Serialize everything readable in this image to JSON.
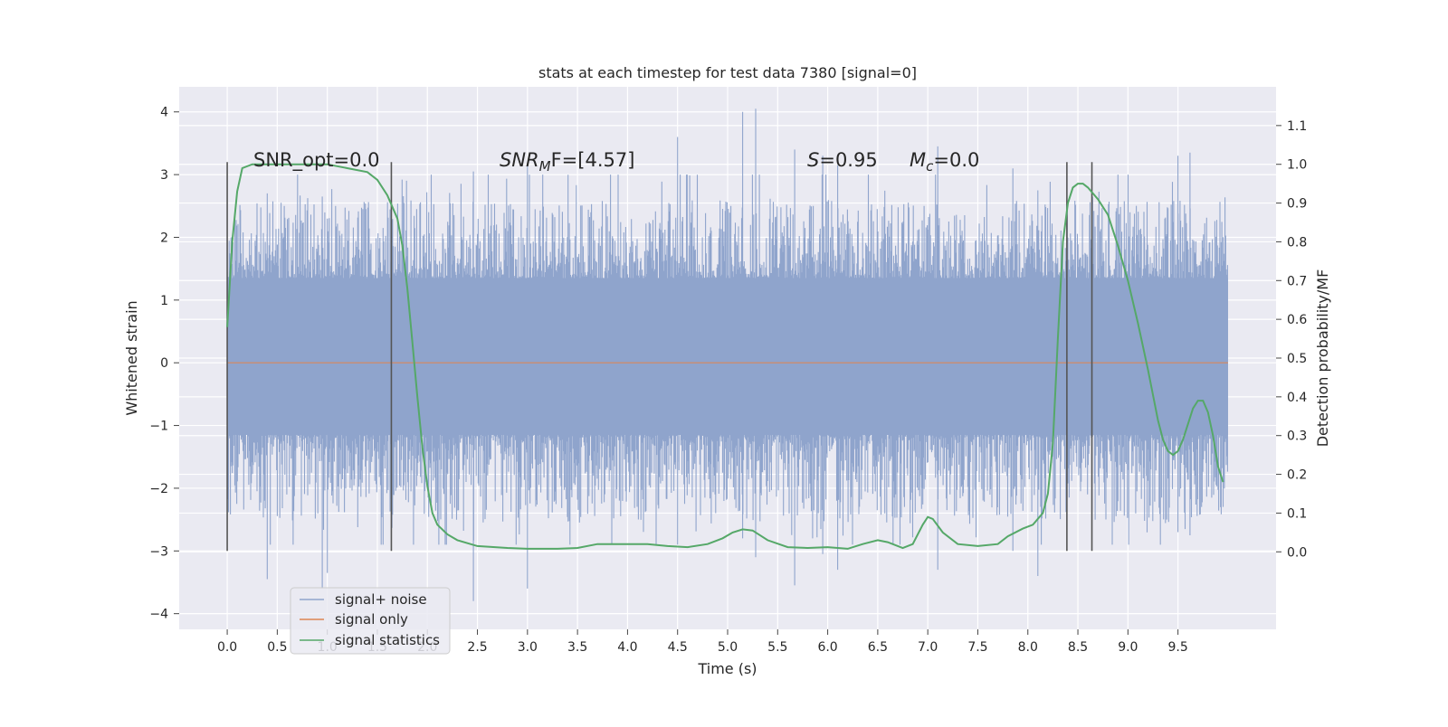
{
  "chart_data": {
    "type": "line",
    "title": "stats at each timestep for test data 7380 [signal=0]",
    "xlabel": "Time (s)",
    "ylabel_left": "Whitened strain",
    "ylabel_right": "Detection probability/MF",
    "xlim": [
      -0.48,
      10.48
    ],
    "ylim_left": [
      -4.25,
      4.4
    ],
    "ylim_right": [
      -0.2,
      1.2
    ],
    "x_ticks": [
      0.0,
      0.5,
      1.0,
      1.5,
      2.0,
      2.5,
      3.0,
      3.5,
      4.0,
      4.5,
      5.0,
      5.5,
      6.0,
      6.5,
      7.0,
      7.5,
      8.0,
      8.5,
      9.0,
      9.5
    ],
    "x_tick_labels": [
      "0.0",
      "0.5",
      "1.0",
      "1.5",
      "2.0",
      "2.5",
      "3.0",
      "3.5",
      "4.0",
      "4.5",
      "5.0",
      "5.5",
      "6.0",
      "6.5",
      "7.0",
      "7.5",
      "8.0",
      "8.5",
      "9.0",
      "9.5"
    ],
    "y_left_ticks": [
      -4,
      -3,
      -2,
      -1,
      0,
      1,
      2,
      3,
      4
    ],
    "y_left_tick_labels": [
      "−4",
      "−3",
      "−2",
      "−1",
      "0",
      "1",
      "2",
      "3",
      "4"
    ],
    "y_right_ticks": [
      0.0,
      0.1,
      0.2,
      0.3,
      0.4,
      0.5,
      0.6,
      0.7,
      0.8,
      0.9,
      1.0,
      1.1
    ],
    "y_right_tick_labels": [
      "0.0",
      "0.1",
      "0.2",
      "0.3",
      "0.4",
      "0.5",
      "0.6",
      "0.7",
      "0.8",
      "0.9",
      "1.0",
      "1.1"
    ],
    "grid": true,
    "legend_position": "lower-left",
    "annotations": {
      "snr_opt": "SNR_opt=0.0",
      "snr_mf_main": "SNR",
      "snr_mf_sub": "M",
      "snr_mf_rest": "F=[4.57]",
      "s_label": "S",
      "s_value": "=0.95",
      "mc_main": "M",
      "mc_sub": "c",
      "mc_value": "=0.0"
    },
    "vertical_markers": {
      "x": [
        0.0,
        1.64,
        8.39,
        8.64
      ],
      "y_range_left": [
        -3.0,
        3.2
      ]
    },
    "noise_envelope": {
      "x_range": [
        0.0,
        10.0
      ],
      "dense_band": [
        -1.15,
        1.35
      ],
      "typical_peak": [
        -2.0,
        2.0
      ],
      "max": 4.05,
      "min": -3.75
    },
    "series": [
      {
        "name": "signal+ noise",
        "color": "#8fa4cc",
        "axis": "left",
        "kind": "noise",
        "spikes": [
          [
            0.4,
            2.7,
            -3.45
          ],
          [
            0.95,
            2.65,
            -3.6
          ],
          [
            1.0,
            2.3,
            -3.35
          ],
          [
            2.46,
            3.05,
            -3.8
          ],
          [
            3.0,
            3.15,
            -3.6
          ],
          [
            4.5,
            3.6,
            -2.9
          ],
          [
            5.15,
            4.0,
            -2.8
          ],
          [
            5.28,
            4.05,
            -3.1
          ],
          [
            5.67,
            3.4,
            -3.55
          ],
          [
            6.1,
            3.15,
            -3.3
          ],
          [
            7.1,
            3.45,
            -3.3
          ],
          [
            8.1,
            2.75,
            -3.4
          ],
          [
            9.5,
            3.3,
            -2.7
          ],
          [
            9.62,
            3.35,
            -2.75
          ],
          [
            7.85,
            3.1,
            -3.0
          ],
          [
            5.95,
            3.3,
            -3.05
          ]
        ]
      },
      {
        "name": "signal only",
        "color": "#dd8452",
        "axis": "left",
        "x": [
          0.0,
          10.0
        ],
        "y": [
          0.0,
          0.0
        ]
      },
      {
        "name": "signal statistics",
        "color": "#55a868",
        "axis": "right",
        "x": [
          0.0,
          0.05,
          0.1,
          0.15,
          0.25,
          0.4,
          0.6,
          0.8,
          1.0,
          1.2,
          1.4,
          1.5,
          1.6,
          1.7,
          1.75,
          1.8,
          1.85,
          1.9,
          1.95,
          2.0,
          2.05,
          2.1,
          2.2,
          2.3,
          2.5,
          2.8,
          3.0,
          3.3,
          3.5,
          3.7,
          4.0,
          4.2,
          4.4,
          4.6,
          4.8,
          4.95,
          5.05,
          5.15,
          5.25,
          5.4,
          5.6,
          5.8,
          6.0,
          6.2,
          6.35,
          6.5,
          6.6,
          6.75,
          6.85,
          6.95,
          7.0,
          7.05,
          7.15,
          7.3,
          7.5,
          7.7,
          7.8,
          7.95,
          8.05,
          8.15,
          8.2,
          8.25,
          8.3,
          8.35,
          8.4,
          8.45,
          8.5,
          8.55,
          8.6,
          8.7,
          8.8,
          8.9,
          9.0,
          9.1,
          9.2,
          9.3,
          9.35,
          9.4,
          9.45,
          9.5,
          9.55,
          9.6,
          9.65,
          9.7,
          9.75,
          9.8,
          9.85,
          9.9,
          9.95
        ],
        "y": [
          0.58,
          0.8,
          0.93,
          0.99,
          1.0,
          1.0,
          1.0,
          1.0,
          1.0,
          0.99,
          0.98,
          0.96,
          0.92,
          0.86,
          0.79,
          0.68,
          0.54,
          0.4,
          0.27,
          0.17,
          0.1,
          0.07,
          0.045,
          0.03,
          0.015,
          0.01,
          0.008,
          0.008,
          0.01,
          0.02,
          0.02,
          0.02,
          0.015,
          0.012,
          0.02,
          0.035,
          0.05,
          0.058,
          0.055,
          0.03,
          0.012,
          0.01,
          0.012,
          0.008,
          0.02,
          0.03,
          0.025,
          0.01,
          0.02,
          0.07,
          0.09,
          0.085,
          0.05,
          0.02,
          0.015,
          0.02,
          0.04,
          0.06,
          0.07,
          0.1,
          0.15,
          0.28,
          0.55,
          0.8,
          0.9,
          0.94,
          0.95,
          0.95,
          0.94,
          0.91,
          0.87,
          0.79,
          0.7,
          0.59,
          0.47,
          0.34,
          0.29,
          0.26,
          0.25,
          0.26,
          0.29,
          0.33,
          0.37,
          0.39,
          0.39,
          0.36,
          0.3,
          0.22,
          0.18
        ]
      }
    ]
  }
}
